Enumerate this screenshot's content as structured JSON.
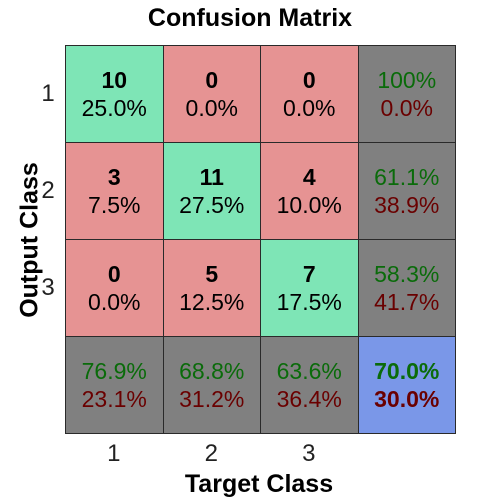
{
  "chart_data": {
    "type": "heatmap",
    "title": "Confusion Matrix",
    "xlabel": "Target Class",
    "ylabel": "Output Class",
    "x_tick_labels": [
      "1",
      "2",
      "3"
    ],
    "y_tick_labels": [
      "1",
      "2",
      "3"
    ],
    "counts": [
      [
        10,
        0,
        0
      ],
      [
        3,
        11,
        4
      ],
      [
        0,
        5,
        7
      ]
    ],
    "cell_percents": [
      [
        "25.0%",
        "0.0%",
        "0.0%"
      ],
      [
        "7.5%",
        "27.5%",
        "10.0%"
      ],
      [
        "0.0%",
        "12.5%",
        "17.5%"
      ]
    ],
    "row_summary": [
      {
        "correct": "100%",
        "incorrect": "0.0%"
      },
      {
        "correct": "61.1%",
        "incorrect": "38.9%"
      },
      {
        "correct": "58.3%",
        "incorrect": "41.7%"
      }
    ],
    "col_summary": [
      {
        "correct": "76.9%",
        "incorrect": "23.1%"
      },
      {
        "correct": "68.8%",
        "incorrect": "31.2%"
      },
      {
        "correct": "63.6%",
        "incorrect": "36.4%"
      }
    ],
    "overall": {
      "correct": "70.0%",
      "incorrect": "30.0%"
    },
    "colors": {
      "correct": "#7ee5b6",
      "incorrect": "#e69393",
      "summary": "#808080",
      "overall": "#7a97e8",
      "good_text": "#0a6b0a",
      "bad_text": "#6a0000"
    }
  }
}
